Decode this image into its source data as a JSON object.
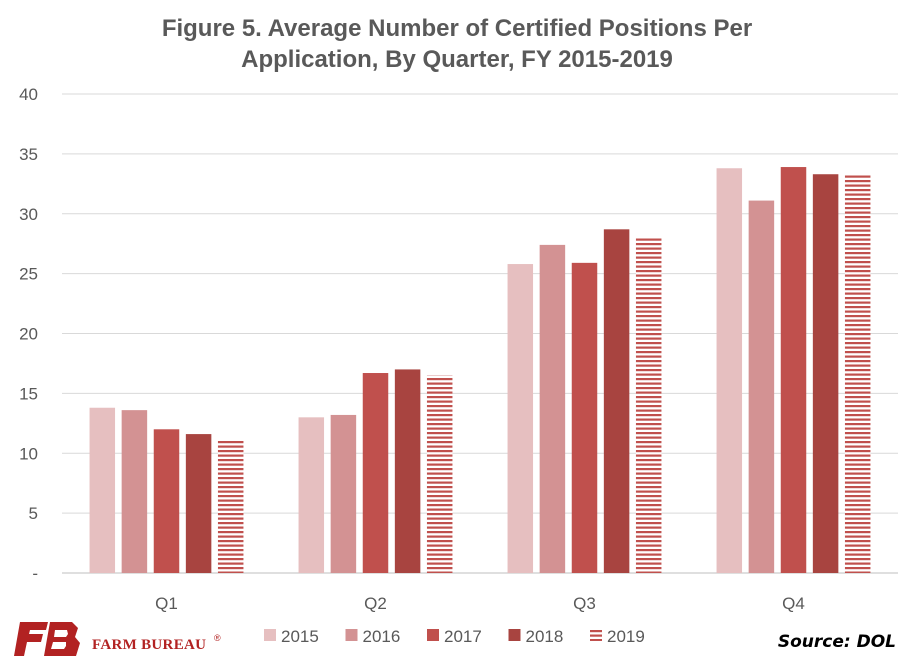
{
  "chart_data": {
    "type": "bar",
    "title_line1": "Figure 5. Average Number of Certified Positions Per",
    "title_line2": "Application, By Quarter, FY 2015-2019",
    "categories": [
      "Q1",
      "Q2",
      "Q3",
      "Q4"
    ],
    "y_ticks": [
      "40",
      "35",
      "30",
      "25",
      "20",
      "15",
      "10",
      "5",
      "-"
    ],
    "ylim": [
      0,
      40
    ],
    "grid": true,
    "legend_position": "bottom",
    "series": [
      {
        "name": "2015",
        "values": [
          13.8,
          13.0,
          25.8,
          33.8
        ],
        "color": "#e6bfc0",
        "pattern": "solid"
      },
      {
        "name": "2016",
        "values": [
          13.6,
          13.2,
          27.4,
          31.1
        ],
        "color": "#d39293",
        "pattern": "solid"
      },
      {
        "name": "2017",
        "values": [
          12.0,
          16.7,
          25.9,
          33.9
        ],
        "color": "#c0504d",
        "pattern": "solid"
      },
      {
        "name": "2018",
        "values": [
          11.6,
          17.0,
          28.7,
          33.3
        ],
        "color": "#a84440",
        "pattern": "solid"
      },
      {
        "name": "2019",
        "values": [
          11.1,
          16.5,
          28.1,
          33.2
        ],
        "color": "#c0504d",
        "pattern": "horizontal-lines"
      }
    ]
  },
  "footer": {
    "logo_text": "FARM BUREAU",
    "logo_mark": "®",
    "source": "Source: DOL"
  }
}
